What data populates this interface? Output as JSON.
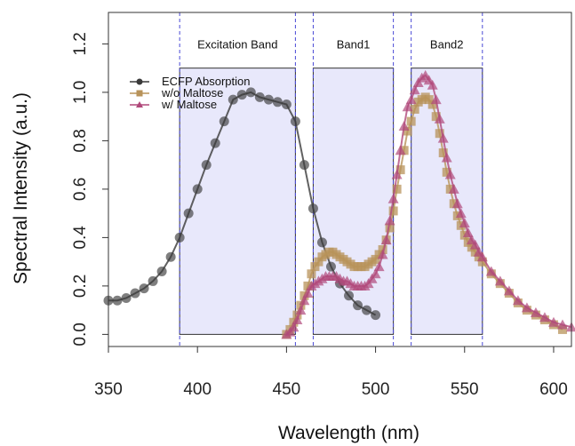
{
  "chart_data": {
    "type": "line",
    "title": "",
    "xlabel": "Wavelength (nm)",
    "ylabel": "Spectral Intensity (a.u.)",
    "xlim": [
      350,
      610
    ],
    "ylim": [
      -0.05,
      1.33
    ],
    "x_ticks": [
      350,
      400,
      450,
      500,
      550,
      600
    ],
    "y_ticks": [
      0.0,
      0.2,
      0.4,
      0.6,
      0.8,
      1.0,
      1.2
    ],
    "x_tick_labels": [
      "350",
      "400",
      "450",
      "500",
      "550",
      "600"
    ],
    "y_tick_labels": [
      "0.0",
      "0.2",
      "0.4",
      "0.6",
      "0.8",
      "1.0",
      "1.2"
    ],
    "grid": false,
    "legend_position": "top-left",
    "bands": [
      {
        "label": "Excitation Band",
        "x0": 390,
        "x1": 455,
        "y0": 0.0,
        "y1": 1.1
      },
      {
        "label": "Band1",
        "x0": 465,
        "x1": 510,
        "y0": 0.0,
        "y1": 1.1
      },
      {
        "label": "Band2",
        "x0": 520,
        "x1": 560,
        "y0": 0.0,
        "y1": 1.1
      }
    ],
    "series": [
      {
        "name": "ECFP Absorption",
        "color": "#3a3a3a",
        "marker": "circle",
        "x": [
          350,
          355,
          360,
          365,
          370,
          375,
          380,
          385,
          390,
          395,
          400,
          405,
          410,
          415,
          420,
          425,
          430,
          435,
          440,
          445,
          450,
          455,
          460,
          465,
          470,
          475,
          480,
          485,
          490,
          495,
          500
        ],
        "y": [
          0.14,
          0.14,
          0.15,
          0.17,
          0.19,
          0.22,
          0.26,
          0.32,
          0.4,
          0.5,
          0.6,
          0.7,
          0.79,
          0.88,
          0.97,
          0.99,
          1.0,
          0.98,
          0.97,
          0.96,
          0.95,
          0.88,
          0.7,
          0.52,
          0.38,
          0.28,
          0.21,
          0.16,
          0.12,
          0.1,
          0.08
        ]
      },
      {
        "name": "w/o Maltose",
        "color": "#b8935a",
        "marker": "square",
        "x": [
          450,
          452,
          454,
          456,
          458,
          460,
          462,
          464,
          466,
          468,
          470,
          472,
          474,
          476,
          478,
          480,
          482,
          484,
          486,
          488,
          490,
          492,
          494,
          496,
          498,
          500,
          502,
          504,
          506,
          508,
          510,
          512,
          514,
          516,
          518,
          520,
          522,
          524,
          526,
          528,
          530,
          532,
          534,
          536,
          538,
          540,
          542,
          544,
          546,
          548,
          550,
          552,
          554,
          556,
          558,
          560,
          565,
          570,
          575,
          580,
          585,
          590,
          595,
          600,
          605
        ],
        "y": [
          0.0,
          0.02,
          0.05,
          0.08,
          0.12,
          0.16,
          0.2,
          0.25,
          0.28,
          0.3,
          0.32,
          0.33,
          0.34,
          0.34,
          0.33,
          0.32,
          0.31,
          0.3,
          0.29,
          0.28,
          0.28,
          0.28,
          0.28,
          0.29,
          0.3,
          0.31,
          0.33,
          0.35,
          0.39,
          0.44,
          0.51,
          0.6,
          0.68,
          0.76,
          0.84,
          0.88,
          0.93,
          0.96,
          0.97,
          0.98,
          0.97,
          0.95,
          0.9,
          0.83,
          0.75,
          0.67,
          0.6,
          0.54,
          0.49,
          0.45,
          0.41,
          0.38,
          0.36,
          0.34,
          0.32,
          0.3,
          0.25,
          0.21,
          0.17,
          0.13,
          0.1,
          0.08,
          0.06,
          0.04,
          0.02
        ]
      },
      {
        "name": "w/ Maltose",
        "color": "#b0487a",
        "marker": "triangle",
        "x": [
          450,
          452,
          454,
          456,
          458,
          460,
          462,
          464,
          466,
          468,
          470,
          472,
          474,
          476,
          478,
          480,
          482,
          484,
          486,
          488,
          490,
          492,
          494,
          496,
          498,
          500,
          502,
          504,
          506,
          508,
          510,
          512,
          514,
          516,
          518,
          520,
          522,
          524,
          526,
          528,
          530,
          532,
          534,
          536,
          538,
          540,
          542,
          544,
          546,
          548,
          550,
          552,
          554,
          556,
          558,
          560,
          565,
          570,
          575,
          580,
          585,
          590,
          595,
          600,
          605,
          610
        ],
        "y": [
          0.0,
          0.01,
          0.03,
          0.06,
          0.1,
          0.14,
          0.17,
          0.2,
          0.21,
          0.22,
          0.23,
          0.24,
          0.24,
          0.24,
          0.24,
          0.23,
          0.22,
          0.22,
          0.21,
          0.2,
          0.2,
          0.2,
          0.2,
          0.21,
          0.23,
          0.25,
          0.28,
          0.33,
          0.39,
          0.47,
          0.56,
          0.66,
          0.76,
          0.86,
          0.94,
          0.97,
          1.01,
          1.04,
          1.06,
          1.07,
          1.05,
          1.03,
          0.97,
          0.89,
          0.81,
          0.73,
          0.66,
          0.6,
          0.54,
          0.5,
          0.46,
          0.42,
          0.39,
          0.37,
          0.34,
          0.32,
          0.26,
          0.22,
          0.18,
          0.14,
          0.11,
          0.09,
          0.07,
          0.05,
          0.04,
          0.03
        ]
      }
    ]
  }
}
